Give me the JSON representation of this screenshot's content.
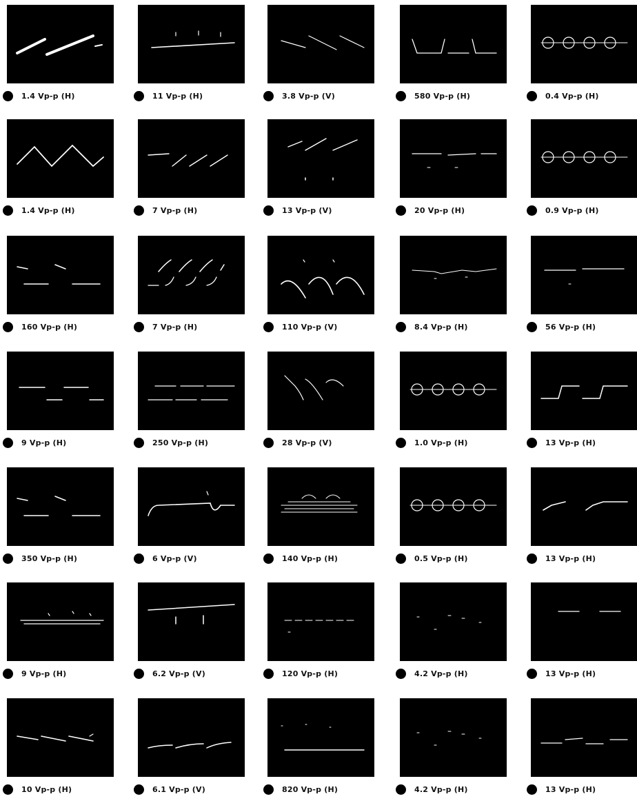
{
  "waveforms": [
    {
      "label": "1.4 Vp-p (H)",
      "pattern": "sawtooth-bright"
    },
    {
      "label": "11 Vp-p (H)",
      "pattern": "flat-pulses"
    },
    {
      "label": "3.8 Vp-p (V)",
      "pattern": "down-ramp"
    },
    {
      "label": "580 Vp-p (H)",
      "pattern": "notched"
    },
    {
      "label": "0.4 Vp-p (H)",
      "pattern": "ring-dots"
    },
    {
      "label": "1.4 Vp-p (H)",
      "pattern": "triangle"
    },
    {
      "label": "7 Vp-p (H)",
      "pattern": "sawtooth"
    },
    {
      "label": "13 Vp-p (V)",
      "pattern": "sawtooth-spikes"
    },
    {
      "label": "20 Vp-p (H)",
      "pattern": "flat-dashes"
    },
    {
      "label": "0.9 Vp-p (H)",
      "pattern": "ring-dots"
    },
    {
      "label": "160 Vp-p (H)",
      "pattern": "square-sparse"
    },
    {
      "label": "7 Vp-p (H)",
      "pattern": "hooks"
    },
    {
      "label": "110 Vp-p (V)",
      "pattern": "arcs"
    },
    {
      "label": "8.4 Vp-p (H)",
      "pattern": "noisy-flat"
    },
    {
      "label": "56 Vp-p (H)",
      "pattern": "flat-high"
    },
    {
      "label": "9 Vp-p (H)",
      "pattern": "square"
    },
    {
      "label": "250 Vp-p (H)",
      "pattern": "square-dashed"
    },
    {
      "label": "28 Vp-p (V)",
      "pattern": "cusps"
    },
    {
      "label": "1.0 Vp-p (H)",
      "pattern": "ring-dots"
    },
    {
      "label": "13 Vp-p (H)",
      "pattern": "step"
    },
    {
      "label": "350 Vp-p (H)",
      "pattern": "square-sparse"
    },
    {
      "label": "6 Vp-p (V)",
      "pattern": "long-ramp"
    },
    {
      "label": "140 Vp-p (H)",
      "pattern": "busy-lines"
    },
    {
      "label": "0.5 Vp-p (H)",
      "pattern": "ring-dots"
    },
    {
      "label": "13 Vp-p (H)",
      "pattern": "rise-steps"
    },
    {
      "label": "9 Vp-p (H)",
      "pattern": "bumps"
    },
    {
      "label": "6.2 Vp-p (V)",
      "pattern": "flat-ticks"
    },
    {
      "label": "120 Vp-p (H)",
      "pattern": "dash-row"
    },
    {
      "label": "4.2 Vp-p (H)",
      "pattern": "sparse-dots"
    },
    {
      "label": "13 Vp-p (H)",
      "pattern": "two-dashes"
    },
    {
      "label": "10 Vp-p (H)",
      "pattern": "down-saw"
    },
    {
      "label": "6.1 Vp-p (V)",
      "pattern": "soft-saw"
    },
    {
      "label": "820 Vp-p (H)",
      "pattern": "low-line"
    },
    {
      "label": "4.2 Vp-p (H)",
      "pattern": "sparse-dots"
    },
    {
      "label": "13 Vp-p (H)",
      "pattern": "dash-step"
    }
  ]
}
